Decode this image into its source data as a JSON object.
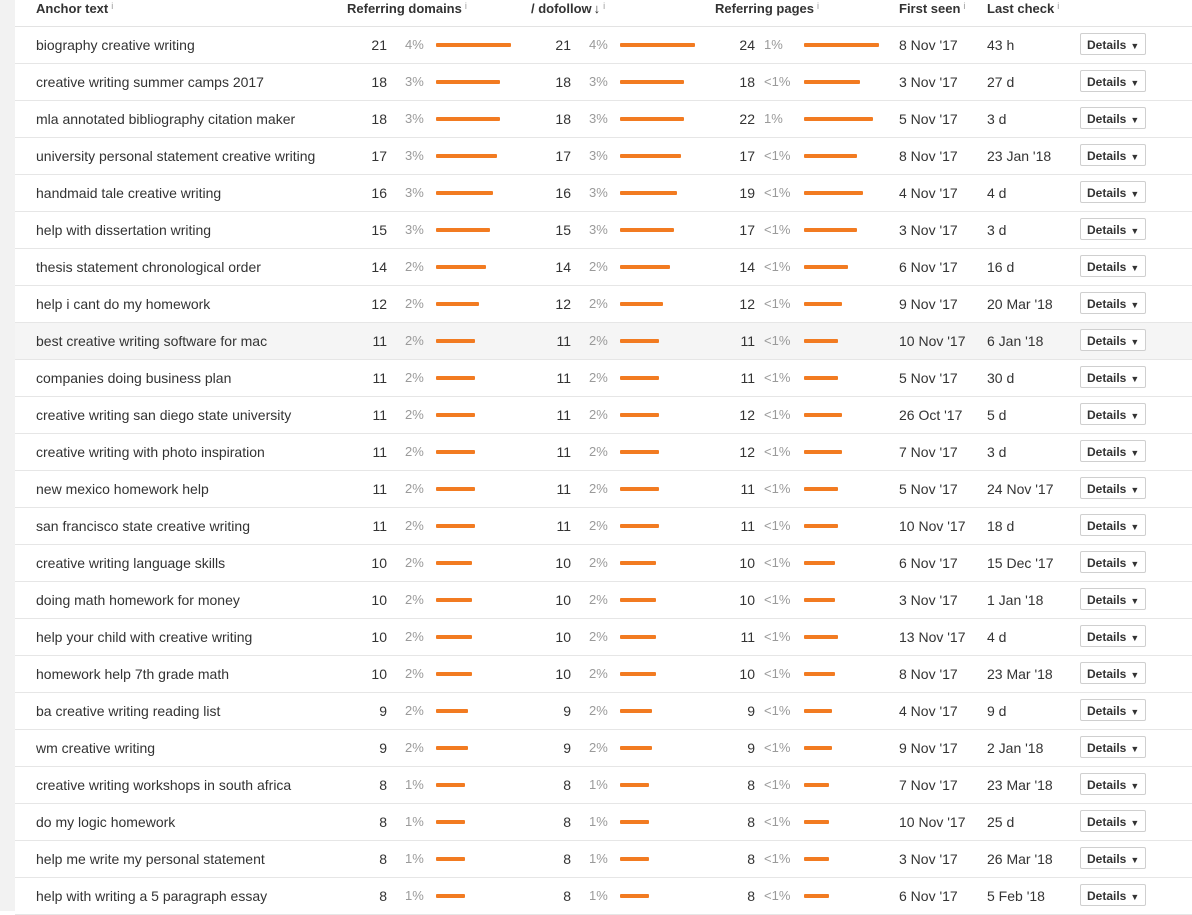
{
  "header": {
    "anchor_text": "Anchor text",
    "referring_domains": "Referring domains",
    "dofollow": "/ dofollow",
    "dofollow_sort_arrow": "↓",
    "referring_pages": "Referring pages",
    "first_seen": "First seen",
    "last_check": "Last check",
    "info_mark": "i"
  },
  "details_label": "Details",
  "details_caret": "▼",
  "bar_color": "#f27b21",
  "rows": [
    {
      "anchor": "biography creative writing",
      "rd": "21",
      "rd_pct": "4%",
      "df": "21",
      "df_pct": "4%",
      "rp": "24",
      "rp_pct": "1%",
      "first_seen": "8 Nov '17",
      "last_check": "43 h"
    },
    {
      "anchor": "creative writing summer camps 2017",
      "rd": "18",
      "rd_pct": "3%",
      "df": "18",
      "df_pct": "3%",
      "rp": "18",
      "rp_pct": "<1%",
      "first_seen": "3 Nov '17",
      "last_check": "27 d"
    },
    {
      "anchor": "mla annotated bibliography citation maker",
      "rd": "18",
      "rd_pct": "3%",
      "df": "18",
      "df_pct": "3%",
      "rp": "22",
      "rp_pct": "1%",
      "first_seen": "5 Nov '17",
      "last_check": "3 d"
    },
    {
      "anchor": "university personal statement creative writing",
      "rd": "17",
      "rd_pct": "3%",
      "df": "17",
      "df_pct": "3%",
      "rp": "17",
      "rp_pct": "<1%",
      "first_seen": "8 Nov '17",
      "last_check": "23 Jan '18"
    },
    {
      "anchor": "handmaid tale creative writing",
      "rd": "16",
      "rd_pct": "3%",
      "df": "16",
      "df_pct": "3%",
      "rp": "19",
      "rp_pct": "<1%",
      "first_seen": "4 Nov '17",
      "last_check": "4 d"
    },
    {
      "anchor": "help with dissertation writing",
      "rd": "15",
      "rd_pct": "3%",
      "df": "15",
      "df_pct": "3%",
      "rp": "17",
      "rp_pct": "<1%",
      "first_seen": "3 Nov '17",
      "last_check": "3 d"
    },
    {
      "anchor": "thesis statement chronological order",
      "rd": "14",
      "rd_pct": "2%",
      "df": "14",
      "df_pct": "2%",
      "rp": "14",
      "rp_pct": "<1%",
      "first_seen": "6 Nov '17",
      "last_check": "16 d"
    },
    {
      "anchor": "help i cant do my homework",
      "rd": "12",
      "rd_pct": "2%",
      "df": "12",
      "df_pct": "2%",
      "rp": "12",
      "rp_pct": "<1%",
      "first_seen": "9 Nov '17",
      "last_check": "20 Mar '18"
    },
    {
      "anchor": "best creative writing software for mac",
      "rd": "11",
      "rd_pct": "2%",
      "df": "11",
      "df_pct": "2%",
      "rp": "11",
      "rp_pct": "<1%",
      "first_seen": "10 Nov '17",
      "last_check": "6 Jan '18",
      "highlight": true
    },
    {
      "anchor": "companies doing business plan",
      "rd": "11",
      "rd_pct": "2%",
      "df": "11",
      "df_pct": "2%",
      "rp": "11",
      "rp_pct": "<1%",
      "first_seen": "5 Nov '17",
      "last_check": "30 d"
    },
    {
      "anchor": "creative writing san diego state university",
      "rd": "11",
      "rd_pct": "2%",
      "df": "11",
      "df_pct": "2%",
      "rp": "12",
      "rp_pct": "<1%",
      "first_seen": "26 Oct '17",
      "last_check": "5 d"
    },
    {
      "anchor": "creative writing with photo inspiration",
      "rd": "11",
      "rd_pct": "2%",
      "df": "11",
      "df_pct": "2%",
      "rp": "12",
      "rp_pct": "<1%",
      "first_seen": "7 Nov '17",
      "last_check": "3 d"
    },
    {
      "anchor": "new mexico homework help",
      "rd": "11",
      "rd_pct": "2%",
      "df": "11",
      "df_pct": "2%",
      "rp": "11",
      "rp_pct": "<1%",
      "first_seen": "5 Nov '17",
      "last_check": "24 Nov '17"
    },
    {
      "anchor": "san francisco state creative writing",
      "rd": "11",
      "rd_pct": "2%",
      "df": "11",
      "df_pct": "2%",
      "rp": "11",
      "rp_pct": "<1%",
      "first_seen": "10 Nov '17",
      "last_check": "18 d"
    },
    {
      "anchor": "creative writing language skills",
      "rd": "10",
      "rd_pct": "2%",
      "df": "10",
      "df_pct": "2%",
      "rp": "10",
      "rp_pct": "<1%",
      "first_seen": "6 Nov '17",
      "last_check": "15 Dec '17"
    },
    {
      "anchor": "doing math homework for money",
      "rd": "10",
      "rd_pct": "2%",
      "df": "10",
      "df_pct": "2%",
      "rp": "10",
      "rp_pct": "<1%",
      "first_seen": "3 Nov '17",
      "last_check": "1 Jan '18"
    },
    {
      "anchor": "help your child with creative writing",
      "rd": "10",
      "rd_pct": "2%",
      "df": "10",
      "df_pct": "2%",
      "rp": "11",
      "rp_pct": "<1%",
      "first_seen": "13 Nov '17",
      "last_check": "4 d"
    },
    {
      "anchor": "homework help 7th grade math",
      "rd": "10",
      "rd_pct": "2%",
      "df": "10",
      "df_pct": "2%",
      "rp": "10",
      "rp_pct": "<1%",
      "first_seen": "8 Nov '17",
      "last_check": "23 Mar '18"
    },
    {
      "anchor": "ba creative writing reading list",
      "rd": "9",
      "rd_pct": "2%",
      "df": "9",
      "df_pct": "2%",
      "rp": "9",
      "rp_pct": "<1%",
      "first_seen": "4 Nov '17",
      "last_check": "9 d"
    },
    {
      "anchor": "wm creative writing",
      "rd": "9",
      "rd_pct": "2%",
      "df": "9",
      "df_pct": "2%",
      "rp": "9",
      "rp_pct": "<1%",
      "first_seen": "9 Nov '17",
      "last_check": "2 Jan '18"
    },
    {
      "anchor": "creative writing workshops in south africa",
      "rd": "8",
      "rd_pct": "1%",
      "df": "8",
      "df_pct": "1%",
      "rp": "8",
      "rp_pct": "<1%",
      "first_seen": "7 Nov '17",
      "last_check": "23 Mar '18"
    },
    {
      "anchor": "do my logic homework",
      "rd": "8",
      "rd_pct": "1%",
      "df": "8",
      "df_pct": "1%",
      "rp": "8",
      "rp_pct": "<1%",
      "first_seen": "10 Nov '17",
      "last_check": "25 d"
    },
    {
      "anchor": "help me write my personal statement",
      "rd": "8",
      "rd_pct": "1%",
      "df": "8",
      "df_pct": "1%",
      "rp": "8",
      "rp_pct": "<1%",
      "first_seen": "3 Nov '17",
      "last_check": "26 Mar '18"
    },
    {
      "anchor": "help with writing a 5 paragraph essay",
      "rd": "8",
      "rd_pct": "1%",
      "df": "8",
      "df_pct": "1%",
      "rp": "8",
      "rp_pct": "<1%",
      "first_seen": "6 Nov '17",
      "last_check": "5 Feb '18"
    }
  ]
}
